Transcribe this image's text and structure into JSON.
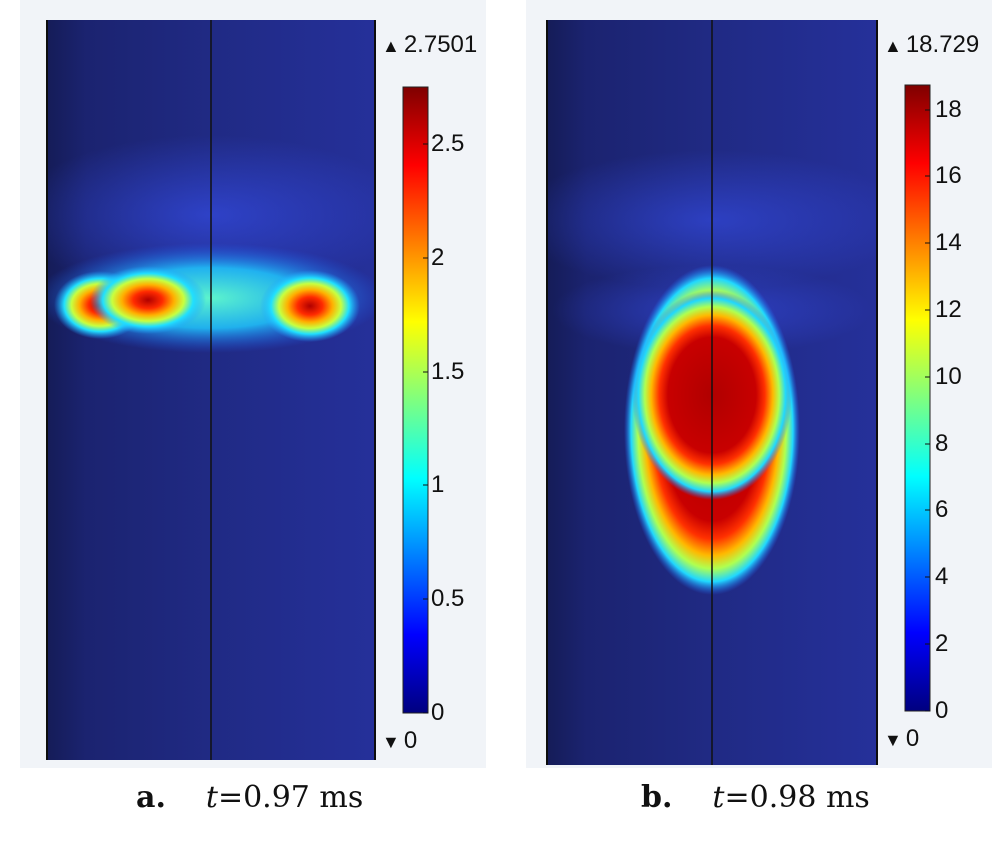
{
  "chart_data": [
    {
      "type": "heatmap",
      "panel_label": "a.",
      "caption_var": "t",
      "caption_value": "=0.97 ms",
      "colorbar": {
        "max_label": "2.7501",
        "min_label": "0",
        "range": [
          0,
          2.7501
        ],
        "ticks": [
          0,
          0.5,
          1,
          1.5,
          2,
          2.5
        ],
        "tick_labels": [
          "0",
          "0.5",
          "1",
          "1.5",
          "2",
          "2.5"
        ],
        "colormap": "jet"
      },
      "field": {
        "description_values": "hot spots along a horizontal band",
        "hotspots": [
          {
            "x": 0.13,
            "y": 0.38,
            "value": 2.4
          },
          {
            "x": 0.26,
            "y": 0.38,
            "value": 2.7501
          },
          {
            "x": 0.81,
            "y": 0.39,
            "value": 2.6
          }
        ]
      }
    },
    {
      "type": "heatmap",
      "panel_label": "b.",
      "caption_var": "t",
      "caption_value": "=0.98 ms",
      "colorbar": {
        "max_label": "18.729",
        "min_label": "0",
        "range": [
          0,
          18.729
        ],
        "ticks": [
          0,
          2,
          4,
          6,
          8,
          10,
          12,
          14,
          16,
          18
        ],
        "tick_labels": [
          "0",
          "2",
          "4",
          "6",
          "8",
          "10",
          "12",
          "14",
          "16",
          "18"
        ],
        "colormap": "jet"
      },
      "field": {
        "hotspots": [
          {
            "x": 0.5,
            "y": 0.55,
            "value": 18.729
          }
        ]
      }
    }
  ],
  "colors": {
    "jet_stops": [
      "#00007f",
      "#0000ff",
      "#007fff",
      "#00ffff",
      "#7fff7f",
      "#ffff00",
      "#ff7f00",
      "#ff0000",
      "#7f0000"
    ],
    "plot_background": "#212a84",
    "panel_background": "#f1f4f8"
  }
}
